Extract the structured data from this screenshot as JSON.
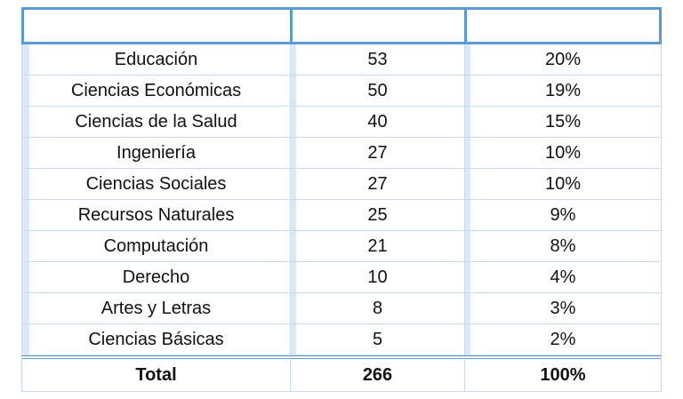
{
  "table": {
    "headers": [
      "",
      "",
      ""
    ],
    "rows": [
      {
        "area": "Educación",
        "count": "53",
        "percent": "20%"
      },
      {
        "area": "Ciencias Económicas",
        "count": "50",
        "percent": "19%"
      },
      {
        "area": "Ciencias de la Salud",
        "count": "40",
        "percent": "15%"
      },
      {
        "area": "Ingeniería",
        "count": "27",
        "percent": "10%"
      },
      {
        "area": "Ciencias Sociales",
        "count": "27",
        "percent": "10%"
      },
      {
        "area": "Recursos Naturales",
        "count": "25",
        "percent": "9%"
      },
      {
        "area": "Computación",
        "count": "21",
        "percent": "8%"
      },
      {
        "area": "Derecho",
        "count": "10",
        "percent": "4%"
      },
      {
        "area": "Artes y Letras",
        "count": "8",
        "percent": "3%"
      },
      {
        "area": "Ciencias Básicas",
        "count": "5",
        "percent": "2%"
      }
    ],
    "total": {
      "label": "Total",
      "count": "266",
      "percent": "100%"
    }
  }
}
